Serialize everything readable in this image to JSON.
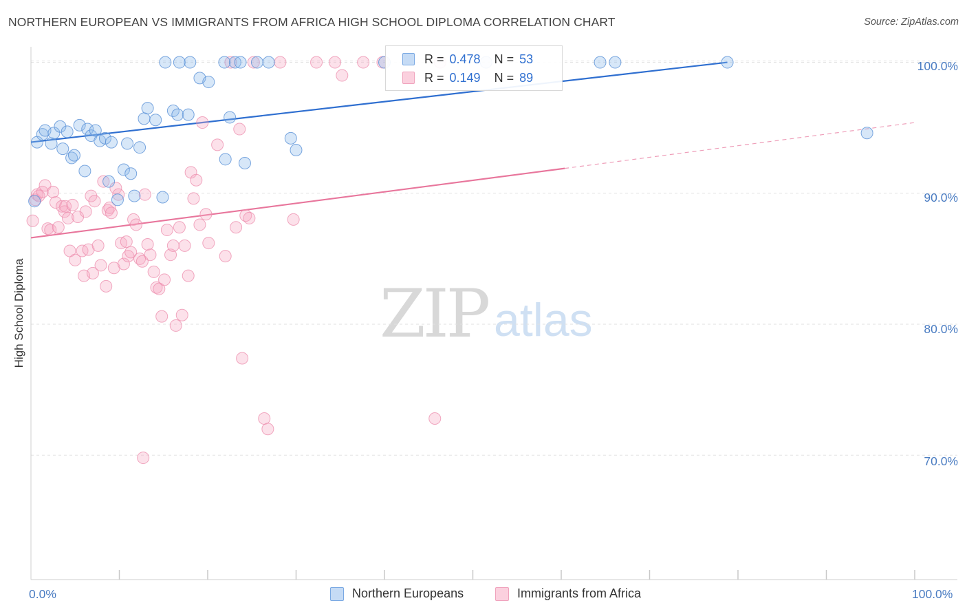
{
  "header": {
    "title": "NORTHERN EUROPEAN VS IMMIGRANTS FROM AFRICA HIGH SCHOOL DIPLOMA CORRELATION CHART",
    "source": "Source: ZipAtlas.com"
  },
  "watermark": {
    "zip": "ZIP",
    "atlas": "atlas"
  },
  "legend": {
    "series1": {
      "r_label": "R =",
      "r_value": "0.478",
      "n_label": "N =",
      "n_value": "53"
    },
    "series2": {
      "r_label": "R =",
      "r_value": "0.149",
      "n_label": "N =",
      "n_value": "89"
    }
  },
  "bottom_legend": {
    "series1": "Northern Europeans",
    "series2": "Immigrants from Africa"
  },
  "chart_data": {
    "type": "scatter",
    "title": "NORTHERN EUROPEAN VS IMMIGRANTS FROM AFRICA HIGH SCHOOL DIPLOMA CORRELATION CHART",
    "xlabel": "",
    "ylabel": "High School Diploma",
    "xlim": [
      0,
      100
    ],
    "ylim": [
      60.5,
      101.5
    ],
    "x_tick_labels": [
      "0.0%",
      "100.0%"
    ],
    "y_ticks": [
      70,
      80,
      90,
      100
    ],
    "y_tick_labels": [
      "70.0%",
      "80.0%",
      "90.0%",
      "100.0%"
    ],
    "grid": true,
    "legend_position": "top-center",
    "colors": {
      "series1": "#7aa9e3",
      "series2": "#f0a3bd",
      "line1": "#2f6fd0",
      "line2": "#e8769c"
    },
    "series": [
      {
        "name": "Northern Europeans",
        "trend": {
          "x": [
            0,
            78.8
          ],
          "y": [
            93.9,
            100.0
          ]
        },
        "points": [
          [
            0.4,
            89.4
          ],
          [
            0.7,
            93.9
          ],
          [
            1.3,
            94.5
          ],
          [
            1.6,
            94.8
          ],
          [
            2.3,
            93.8
          ],
          [
            2.6,
            94.6
          ],
          [
            3.3,
            95.1
          ],
          [
            3.6,
            93.4
          ],
          [
            4.1,
            94.7
          ],
          [
            4.6,
            92.7
          ],
          [
            4.9,
            92.9
          ],
          [
            5.5,
            95.2
          ],
          [
            6.1,
            91.7
          ],
          [
            6.4,
            94.9
          ],
          [
            6.8,
            94.4
          ],
          [
            7.3,
            94.8
          ],
          [
            7.8,
            94.0
          ],
          [
            8.4,
            94.2
          ],
          [
            8.8,
            90.9
          ],
          [
            9.1,
            93.9
          ],
          [
            9.8,
            89.5
          ],
          [
            10.5,
            91.8
          ],
          [
            10.9,
            93.8
          ],
          [
            11.3,
            91.5
          ],
          [
            11.7,
            89.8
          ],
          [
            12.3,
            93.5
          ],
          [
            12.8,
            95.7
          ],
          [
            13.2,
            96.5
          ],
          [
            14.1,
            95.6
          ],
          [
            14.9,
            89.7
          ],
          [
            15.2,
            100.0
          ],
          [
            16.1,
            96.3
          ],
          [
            16.6,
            96.0
          ],
          [
            16.8,
            100.0
          ],
          [
            17.8,
            96.0
          ],
          [
            18.0,
            100.0
          ],
          [
            19.1,
            98.8
          ],
          [
            20.1,
            98.5
          ],
          [
            21.9,
            100.0
          ],
          [
            22.0,
            92.6
          ],
          [
            22.5,
            95.8
          ],
          [
            23.1,
            100.0
          ],
          [
            23.7,
            100.0
          ],
          [
            24.2,
            92.3
          ],
          [
            25.6,
            100.0
          ],
          [
            26.9,
            100.0
          ],
          [
            29.4,
            94.2
          ],
          [
            30.0,
            93.3
          ],
          [
            40.0,
            100.0
          ],
          [
            51.5,
            100.0
          ],
          [
            64.4,
            100.0
          ],
          [
            66.1,
            100.0
          ],
          [
            78.8,
            100.0
          ],
          [
            94.6,
            94.6
          ]
        ]
      },
      {
        "name": "Immigrants from Africa",
        "trend": {
          "x": [
            0,
            60.4
          ],
          "y": [
            86.6,
            91.9
          ]
        },
        "trend_extension": {
          "x": [
            60.4,
            100
          ],
          "y": [
            91.9,
            95.4
          ]
        },
        "points": [
          [
            0.2,
            87.9
          ],
          [
            0.5,
            89.5
          ],
          [
            0.7,
            89.9
          ],
          [
            0.9,
            89.8
          ],
          [
            1.3,
            90.1
          ],
          [
            1.6,
            90.6
          ],
          [
            1.9,
            87.3
          ],
          [
            2.2,
            87.2
          ],
          [
            2.5,
            90.1
          ],
          [
            2.8,
            89.3
          ],
          [
            3.1,
            87.4
          ],
          [
            3.5,
            89.0
          ],
          [
            3.8,
            88.6
          ],
          [
            3.9,
            89.0
          ],
          [
            4.2,
            88.1
          ],
          [
            4.4,
            85.6
          ],
          [
            4.7,
            89.1
          ],
          [
            5.0,
            84.9
          ],
          [
            5.3,
            88.2
          ],
          [
            5.8,
            85.6
          ],
          [
            6.0,
            83.7
          ],
          [
            6.2,
            88.6
          ],
          [
            6.5,
            85.7
          ],
          [
            6.8,
            89.8
          ],
          [
            7.0,
            83.9
          ],
          [
            7.2,
            89.4
          ],
          [
            7.6,
            86.0
          ],
          [
            7.9,
            84.5
          ],
          [
            8.2,
            90.9
          ],
          [
            8.5,
            82.9
          ],
          [
            8.7,
            88.7
          ],
          [
            8.9,
            88.9
          ],
          [
            9.1,
            88.5
          ],
          [
            9.4,
            84.3
          ],
          [
            9.6,
            90.4
          ],
          [
            9.9,
            89.9
          ],
          [
            10.2,
            86.2
          ],
          [
            10.5,
            84.6
          ],
          [
            10.8,
            86.3
          ],
          [
            11.0,
            85.2
          ],
          [
            11.3,
            85.5
          ],
          [
            11.6,
            88.0
          ],
          [
            11.9,
            87.6
          ],
          [
            12.3,
            85.0
          ],
          [
            12.6,
            84.8
          ],
          [
            12.9,
            89.9
          ],
          [
            13.2,
            86.1
          ],
          [
            13.5,
            85.3
          ],
          [
            13.9,
            84.0
          ],
          [
            14.2,
            82.8
          ],
          [
            14.5,
            82.7
          ],
          [
            14.8,
            80.6
          ],
          [
            15.1,
            83.4
          ],
          [
            15.4,
            87.2
          ],
          [
            15.8,
            85.3
          ],
          [
            16.1,
            86.0
          ],
          [
            16.4,
            79.9
          ],
          [
            16.8,
            87.4
          ],
          [
            17.1,
            80.7
          ],
          [
            17.4,
            86.0
          ],
          [
            17.8,
            83.7
          ],
          [
            18.1,
            91.6
          ],
          [
            18.4,
            89.6
          ],
          [
            18.7,
            91.0
          ],
          [
            19.1,
            87.6
          ],
          [
            19.4,
            95.4
          ],
          [
            19.8,
            88.4
          ],
          [
            20.1,
            86.2
          ],
          [
            21.1,
            93.7
          ],
          [
            22.0,
            85.2
          ],
          [
            22.6,
            100.0
          ],
          [
            23.2,
            87.4
          ],
          [
            23.6,
            94.9
          ],
          [
            23.9,
            77.4
          ],
          [
            24.3,
            88.3
          ],
          [
            24.7,
            88.1
          ],
          [
            25.2,
            100.0
          ],
          [
            26.4,
            72.8
          ],
          [
            26.8,
            72.0
          ],
          [
            28.2,
            100.0
          ],
          [
            29.7,
            88.0
          ],
          [
            32.3,
            100.0
          ],
          [
            34.4,
            100.0
          ],
          [
            35.2,
            99.0
          ],
          [
            37.6,
            100.0
          ],
          [
            39.8,
            100.0
          ],
          [
            45.7,
            72.8
          ],
          [
            46.3,
            100.0
          ],
          [
            12.7,
            69.8
          ]
        ]
      }
    ]
  }
}
